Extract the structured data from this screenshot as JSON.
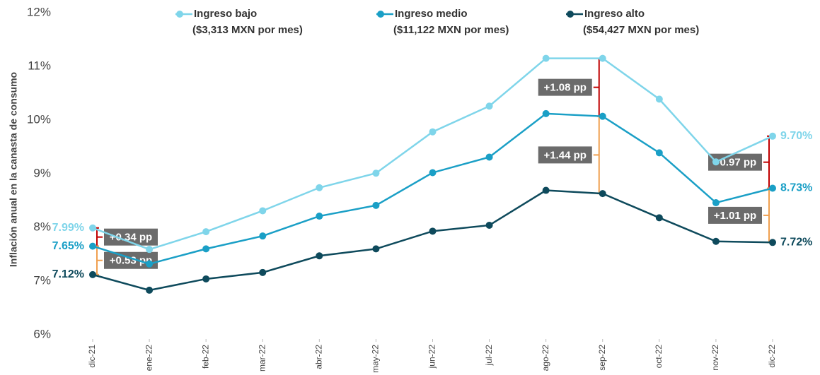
{
  "chart_data": {
    "type": "line",
    "y_axis_label": "Inflación anual en la canasta de consumo",
    "categories": [
      "dic-21",
      "ene-22",
      "feb-22",
      "mar-22",
      "abr-22",
      "may-22",
      "jun-22",
      "jul-22",
      "ago-22",
      "sep-22",
      "oct-22",
      "nov-22",
      "dic-22"
    ],
    "series": [
      {
        "name": "Ingreso bajo",
        "description": "($3,313 MXN por mes)",
        "color": "#7fd5ea",
        "values": [
          7.99,
          7.59,
          7.92,
          8.31,
          8.74,
          9.01,
          9.78,
          10.26,
          11.15,
          11.15,
          10.39,
          9.22,
          9.7
        ],
        "value_labels": [
          "7.99%",
          null,
          null,
          null,
          null,
          null,
          null,
          null,
          null,
          null,
          null,
          null,
          "9.70%"
        ]
      },
      {
        "name": "Ingreso medio",
        "description": "($11,122 MXN por mes)",
        "color": "#1a9fc6",
        "values": [
          7.65,
          7.32,
          7.6,
          7.84,
          8.21,
          8.41,
          9.02,
          9.31,
          10.12,
          10.07,
          9.39,
          8.46,
          8.73
        ],
        "value_labels": [
          "7.65%",
          null,
          null,
          null,
          null,
          null,
          null,
          null,
          null,
          null,
          null,
          null,
          "8.73%"
        ]
      },
      {
        "name": "Ingreso alto",
        "description": "($54,427 MXN por mes)",
        "color": "#0e4a5c",
        "values": [
          7.12,
          6.83,
          7.04,
          7.16,
          7.47,
          7.6,
          7.93,
          8.04,
          8.69,
          8.63,
          8.18,
          7.74,
          7.72
        ],
        "value_labels": [
          "7.12%",
          null,
          null,
          null,
          null,
          null,
          null,
          null,
          null,
          null,
          null,
          null,
          "7.72%"
        ]
      }
    ],
    "annotations": [
      "+0.34 pp",
      "+0.53 pp",
      "+1.08 pp",
      "+1.44 pp",
      "+0.97 pp",
      "+1.01 pp"
    ],
    "ylim": [
      6,
      12
    ],
    "yticks": [
      {
        "value": 6,
        "label": "6%"
      },
      {
        "value": 7,
        "label": "7%"
      },
      {
        "value": 8,
        "label": "8%"
      },
      {
        "value": 9,
        "label": "9%"
      },
      {
        "value": 10,
        "label": "10%"
      },
      {
        "value": 11,
        "label": "11%"
      },
      {
        "value": 12,
        "label": "12%"
      }
    ],
    "legend": "top"
  }
}
